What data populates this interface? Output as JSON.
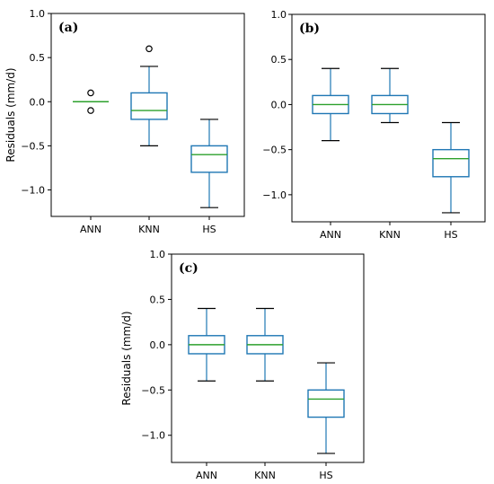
{
  "colors": {
    "box": "#1f77b4",
    "median": "#2ca02c",
    "axis": "#000000",
    "flier": "#000000"
  },
  "chart_data": [
    {
      "type": "box",
      "panel_label": "(a)",
      "ylabel": "Residuals (mm/d)",
      "ylim": [
        -1.3,
        1.0
      ],
      "yticks": [
        1.0,
        0.5,
        0.0,
        -0.5,
        -1.0
      ],
      "ytick_labels": [
        "1.0",
        "0.5",
        "0.0",
        "−0.5",
        "−1.0"
      ],
      "categories": [
        "ANN",
        "KNN",
        "HS"
      ],
      "boxes": [
        {
          "whislo": 0.0,
          "q1": 0.0,
          "med": 0.0,
          "q3": 0.0,
          "whishi": 0.0,
          "fliers": [
            0.1,
            -0.1
          ]
        },
        {
          "whislo": -0.5,
          "q1": -0.2,
          "med": -0.1,
          "q3": 0.1,
          "whishi": 0.4,
          "fliers": [
            0.6
          ]
        },
        {
          "whislo": -1.2,
          "q1": -0.8,
          "med": -0.6,
          "q3": -0.5,
          "whishi": -0.2,
          "fliers": []
        }
      ]
    },
    {
      "type": "box",
      "panel_label": "(b)",
      "ylabel": "",
      "ylim": [
        -1.3,
        1.0
      ],
      "yticks": [
        1.0,
        0.5,
        0.0,
        -0.5,
        -1.0
      ],
      "ytick_labels": [
        "1.0",
        "0.5",
        "0.0",
        "−0.5",
        "−1.0"
      ],
      "categories": [
        "ANN",
        "KNN",
        "HS"
      ],
      "boxes": [
        {
          "whislo": -0.4,
          "q1": -0.1,
          "med": 0.0,
          "q3": 0.1,
          "whishi": 0.4,
          "fliers": []
        },
        {
          "whislo": -0.2,
          "q1": -0.1,
          "med": 0.0,
          "q3": 0.1,
          "whishi": 0.4,
          "fliers": []
        },
        {
          "whislo": -1.2,
          "q1": -0.8,
          "med": -0.6,
          "q3": -0.5,
          "whishi": -0.2,
          "fliers": []
        }
      ]
    },
    {
      "type": "box",
      "panel_label": "(c)",
      "ylabel": "Residuals (mm/d)",
      "ylim": [
        -1.3,
        1.0
      ],
      "yticks": [
        1.0,
        0.5,
        0.0,
        -0.5,
        -1.0
      ],
      "ytick_labels": [
        "1.0",
        "0.5",
        "0.0",
        "−0.5",
        "−1.0"
      ],
      "categories": [
        "ANN",
        "KNN",
        "HS"
      ],
      "boxes": [
        {
          "whislo": -0.4,
          "q1": -0.1,
          "med": 0.0,
          "q3": 0.1,
          "whishi": 0.4,
          "fliers": []
        },
        {
          "whislo": -0.4,
          "q1": -0.1,
          "med": 0.0,
          "q3": 0.1,
          "whishi": 0.4,
          "fliers": []
        },
        {
          "whislo": -1.2,
          "q1": -0.8,
          "med": -0.6,
          "q3": -0.5,
          "whishi": -0.2,
          "fliers": []
        }
      ]
    }
  ]
}
